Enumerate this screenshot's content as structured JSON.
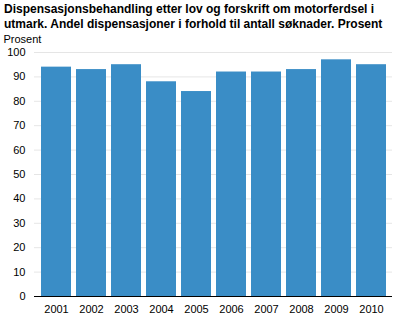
{
  "chart_data": {
    "type": "bar",
    "title": "Dispensasjonsbehandling etter lov og forskrift om motorferdsel i utmark. Andel dispensasjoner i forhold til antall søknader. Prosent",
    "y_label": "Prosent",
    "categories": [
      "2001",
      "2002",
      "2003",
      "2004",
      "2005",
      "2006",
      "2007",
      "2008",
      "2009",
      "2010"
    ],
    "values": [
      94,
      93,
      95,
      88,
      84,
      92,
      92,
      93,
      97,
      95
    ],
    "color": "#3a8dc6",
    "ylim": [
      0,
      100
    ],
    "yticks": [
      0,
      10,
      20,
      30,
      40,
      50,
      60,
      70,
      80,
      90,
      100
    ],
    "grid": true
  }
}
